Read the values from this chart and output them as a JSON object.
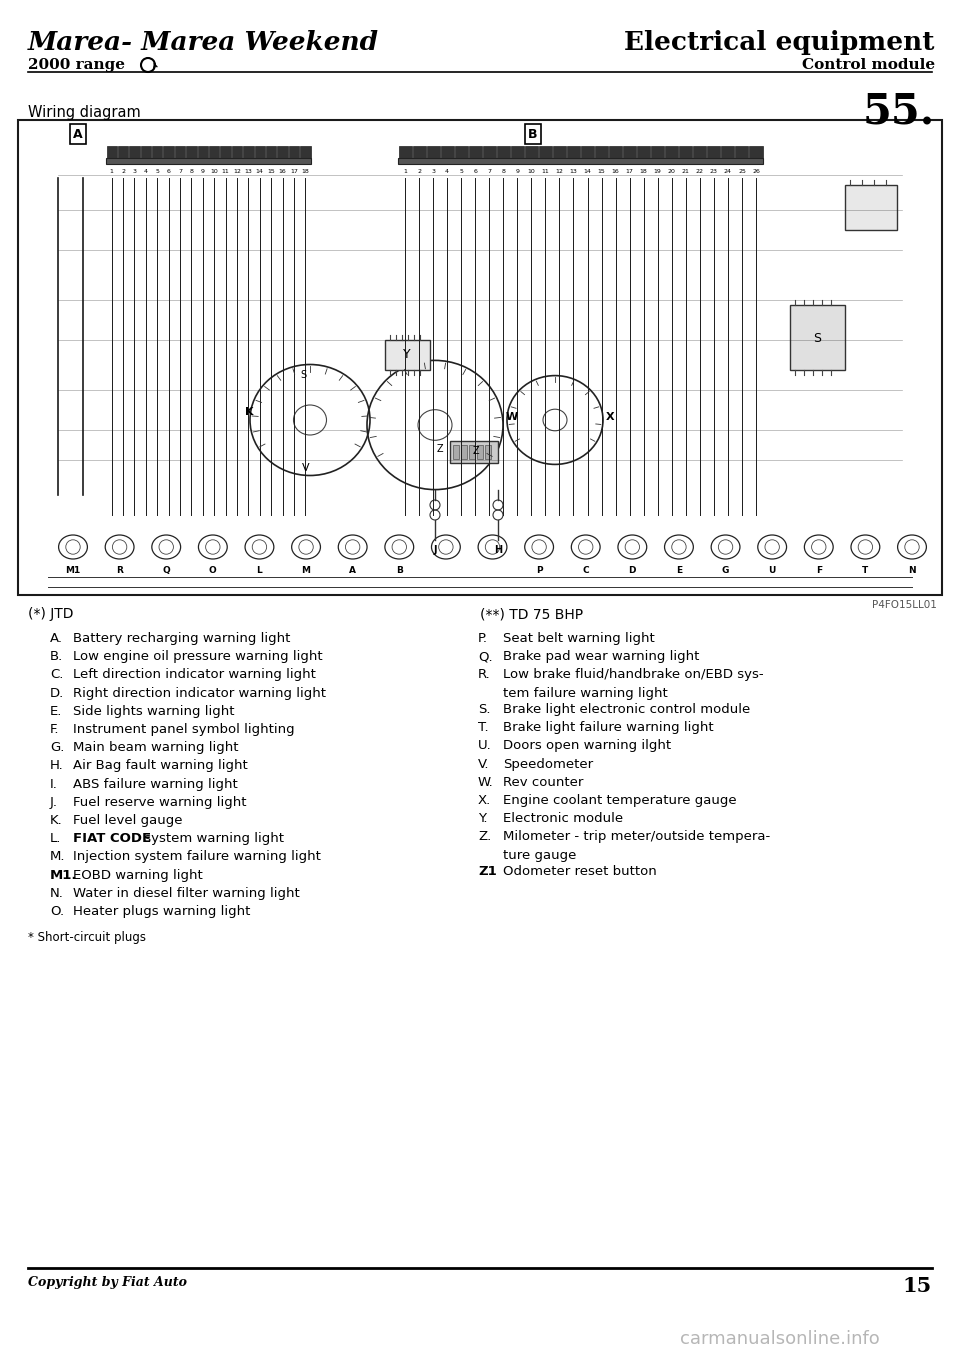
{
  "title_left": "Marea- Marea Weekend",
  "title_right": "Electrical equipment",
  "subtitle_left": "2000 range",
  "subtitle_right": "Control module",
  "page_number": "55.",
  "section_title": "Wiring diagram",
  "footnote_label_left": "(*) JTD",
  "footnote_label_right": "(**) TD 75 BHP",
  "diagram_ref": "P4FO15LL01",
  "items_left": [
    [
      "A.",
      "Battery recharging warning light",
      false
    ],
    [
      "B.",
      "Low engine oil pressure warning light",
      false
    ],
    [
      "C.",
      "Left direction indicator warning light",
      false
    ],
    [
      "D.",
      "Right direction indicator warning light",
      false
    ],
    [
      "E.",
      "Side lights warning light",
      false
    ],
    [
      "F.",
      "Instrument panel symbol lighting",
      false
    ],
    [
      "G.",
      "Main beam warning light",
      false
    ],
    [
      "H.",
      "Air Bag fault warning light",
      false
    ],
    [
      "I.",
      "ABS failure warning light",
      false
    ],
    [
      "J.",
      "Fuel reserve warning light",
      false
    ],
    [
      "K.",
      "Fuel level gauge",
      false
    ],
    [
      "L.",
      "FIAT CODE system warning light",
      true
    ],
    [
      "M.",
      "Injection system failure warning light",
      false
    ],
    [
      "M1.",
      "EOBD warning light",
      false
    ],
    [
      "N.",
      "Water in diesel filter warning light",
      false
    ],
    [
      "O.",
      "Heater plugs warning light",
      false
    ]
  ],
  "items_right": [
    [
      "P.",
      "Seat belt warning light",
      false,
      false
    ],
    [
      "Q.",
      "Brake pad wear warning light",
      false,
      false
    ],
    [
      "R.",
      "Low brake fluid/handbrake on/EBD sys-",
      false,
      true
    ],
    [
      "",
      "tem failure warning light",
      false,
      false
    ],
    [
      "S.",
      "Brake light electronic control module",
      false,
      false
    ],
    [
      "T.",
      "Brake light failure warning light",
      false,
      false
    ],
    [
      "U.",
      "Doors open warning ilght",
      false,
      false
    ],
    [
      "V.",
      "Speedometer",
      false,
      false
    ],
    [
      "W.",
      "Rev counter",
      false,
      false
    ],
    [
      "X.",
      "Engine coolant temperature gauge",
      false,
      false
    ],
    [
      "Y.",
      "Electronic module",
      false,
      false
    ],
    [
      "Z.",
      "Milometer - trip meter/outside tempera-",
      false,
      true
    ],
    [
      "",
      "ture gauge",
      false,
      false
    ],
    [
      "Z1",
      "Odometer reset button",
      false,
      false
    ]
  ],
  "footnote_bottom": "* Short-circuit plugs",
  "copyright": "Copyright by Fiat Auto",
  "page_num_bottom": "15",
  "bg_color": "#ffffff",
  "text_color": "#000000"
}
